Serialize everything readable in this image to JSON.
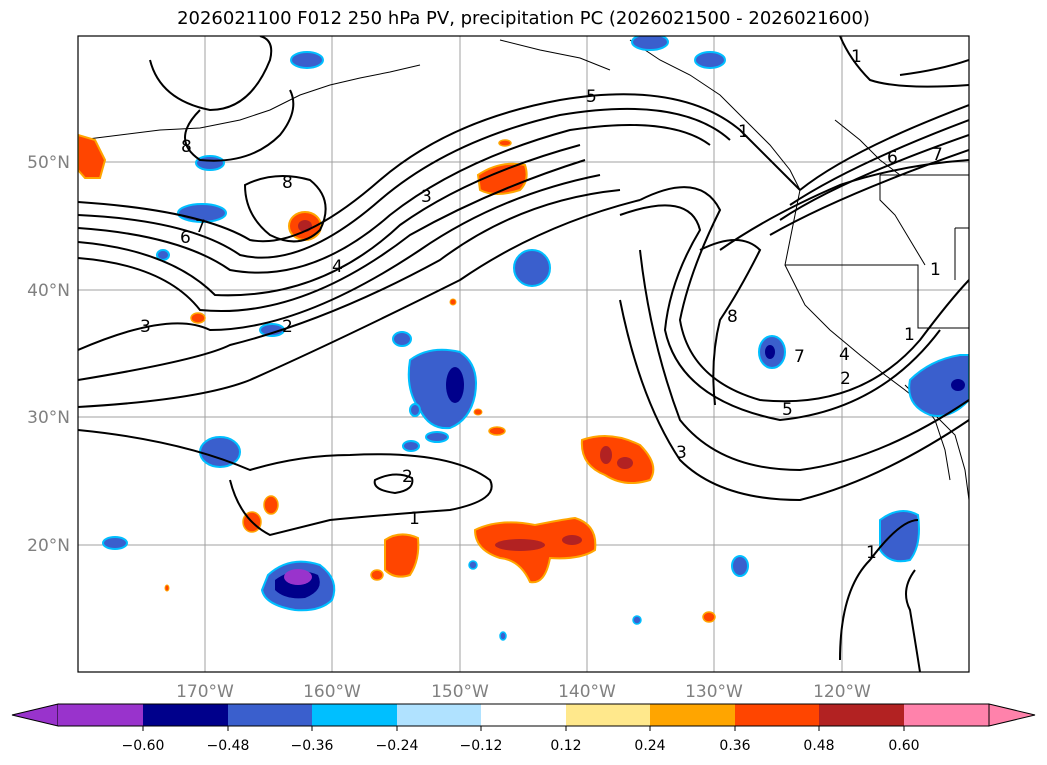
{
  "title": "2026021100 F012 250 hPa PV, precipitation PC (2026021500 - 2026021600)",
  "map": {
    "lon_labels": [
      "170°W",
      "160°W",
      "150°W",
      "140°W",
      "130°W",
      "120°W"
    ],
    "lat_labels": [
      "50°N",
      "40°N",
      "30°N",
      "20°N"
    ],
    "contour_labels": [
      "1",
      "8",
      "8",
      "6",
      "7",
      "3",
      "4",
      "2",
      "5",
      "3",
      "1",
      "6",
      "7",
      "8",
      "7",
      "4",
      "1",
      "2",
      "5",
      "3",
      "2",
      "1",
      "1",
      "1"
    ]
  },
  "colorbar": {
    "ticks": [
      "−0.60",
      "−0.48",
      "−0.36",
      "−0.24",
      "−0.12",
      "0.12",
      "0.24",
      "0.36",
      "0.48",
      "0.60"
    ],
    "colors": {
      "under": "#9933cc",
      "b1": "#00008b",
      "b2": "#3a5fcd",
      "b3": "#00bfff",
      "b4": "#b0e2ff",
      "neutral": "#ffffff",
      "r1": "#ffe88c",
      "r2": "#ffa500",
      "r3": "#ff4500",
      "r4": "#b22222",
      "over": "#ff82ab"
    }
  }
}
